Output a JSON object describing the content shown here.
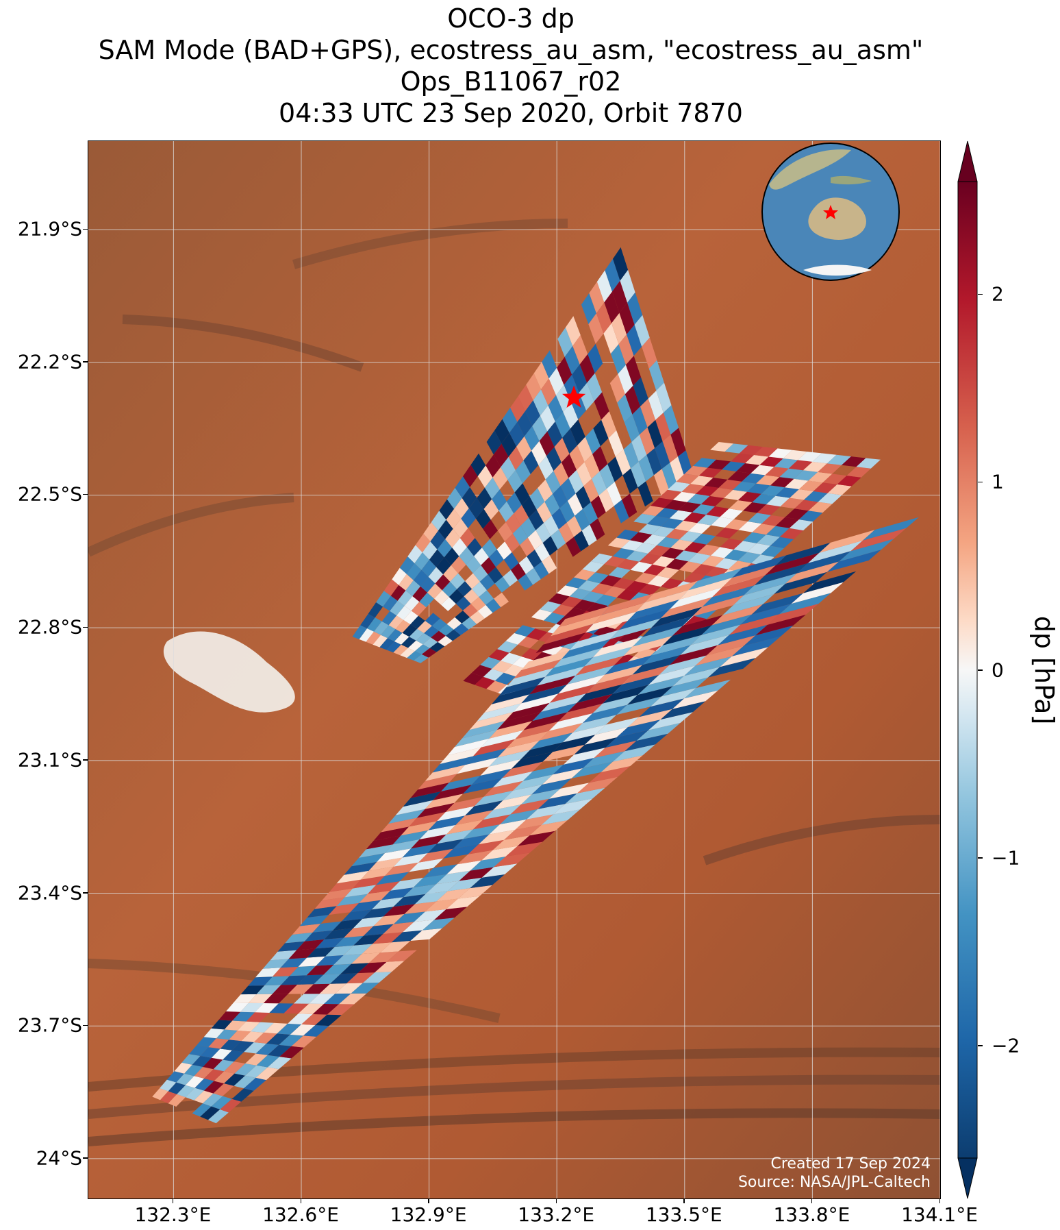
{
  "title": {
    "line1": "OCO-3 dp",
    "line2": "SAM Mode (BAD+GPS), ecostress_au_asm, \"ecostress_au_asm\"",
    "line3": "Ops_B11067_r02",
    "line4": "04:33 UTC 23 Sep 2020, Orbit 7870"
  },
  "map": {
    "lat_labels": [
      "21.9°S",
      "22.2°S",
      "22.5°S",
      "22.8°S",
      "23.1°S",
      "23.4°S",
      "23.7°S",
      "24°S"
    ],
    "lat_values": [
      -21.9,
      -22.2,
      -22.5,
      -22.8,
      -23.1,
      -23.4,
      -23.7,
      -24.0
    ],
    "lon_labels": [
      "132.3°E",
      "132.6°E",
      "132.9°E",
      "133.2°E",
      "133.5°E",
      "133.8°E",
      "134.1°E"
    ],
    "lon_values": [
      132.3,
      132.6,
      132.9,
      133.2,
      133.5,
      133.8,
      134.1
    ],
    "extent": {
      "lon_min": 132.1,
      "lon_max": 134.1,
      "lat_max": -21.7,
      "lat_min": -24.09
    },
    "target_marker": {
      "lon": 133.24,
      "lat": -22.28,
      "color": "#ff0000"
    },
    "gridlines": true,
    "inset_globe": "globe-inset-australia-icon",
    "credits": [
      "Created 17 Sep 2024",
      "Source: NASA/JPL-Caltech"
    ],
    "colors": {
      "background_terrain": "#b8633a",
      "salt_lake": "#f2eee8",
      "gridline": "#dddddd"
    }
  },
  "colorbar": {
    "label": "dp [hPa]",
    "ticks": [
      "2",
      "1",
      "0",
      "−1",
      "−2"
    ],
    "tick_values": [
      2,
      1,
      0,
      -1,
      -2
    ],
    "range": [
      -2.6,
      2.6
    ],
    "colormap": "RdBu_r",
    "extend": "both"
  },
  "chart_data": {
    "type": "heatmap",
    "description_units": "dp [hPa] soundings arranged in swaths over the target region",
    "swaths": [
      {
        "name": "",
        "corners_lonlat": [
          [
            132.72,
            -22.82
          ],
          [
            133.35,
            -21.94
          ],
          [
            133.52,
            -22.45
          ],
          [
            132.88,
            -22.88
          ]
        ]
      },
      {
        "name": "",
        "corners_lonlat": [
          [
            132.98,
            -22.92
          ],
          [
            133.58,
            -22.38
          ],
          [
            133.96,
            -22.42
          ],
          [
            133.28,
            -23.02
          ]
        ]
      },
      {
        "name": "",
        "corners_lonlat": [
          [
            132.25,
            -23.86
          ],
          [
            133.22,
            -22.78
          ],
          [
            134.05,
            -22.55
          ],
          [
            132.4,
            -23.92
          ]
        ]
      }
    ],
    "target": {
      "lon": 133.24,
      "lat": -22.28
    }
  }
}
